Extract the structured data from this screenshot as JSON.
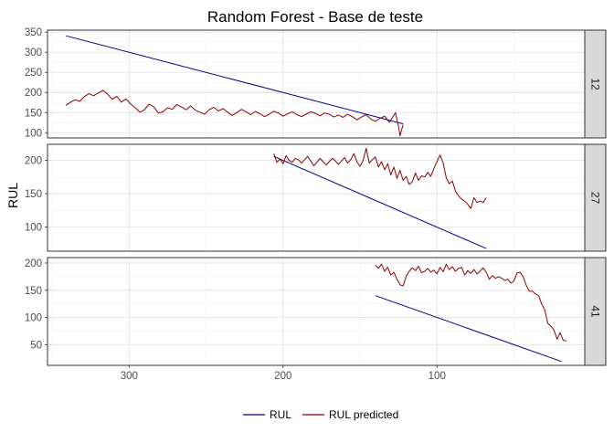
{
  "chart_data": {
    "type": "line",
    "title": "Random Forest - Base de teste",
    "xlabel": "",
    "ylabel": "RUL",
    "x_reversed": true,
    "xlim": [
      4,
      353
    ],
    "x_ticks": [
      300,
      200,
      100
    ],
    "grid": true,
    "legend_position": "bottom",
    "colors": {
      "RUL": "#00008b",
      "RUL predicted": "#8b0000"
    },
    "panels": [
      {
        "strip": "12",
        "ylim": [
          87,
          355
        ],
        "y_ticks": [
          100,
          150,
          200,
          250,
          300,
          350
        ],
        "series": [
          {
            "name": "RUL",
            "points": [
              [
                341,
                341
              ],
              [
                122,
                122
              ]
            ]
          },
          {
            "name": "RUL predicted",
            "points": [
              [
                341,
                168
              ],
              [
                338,
                176
              ],
              [
                335,
                182
              ],
              [
                332,
                178
              ],
              [
                329,
                190
              ],
              [
                326,
                197
              ],
              [
                323,
                192
              ],
              [
                320,
                199
              ],
              [
                317,
                205
              ],
              [
                314,
                196
              ],
              [
                311,
                183
              ],
              [
                308,
                190
              ],
              [
                305,
                176
              ],
              [
                302,
                184
              ],
              [
                299,
                171
              ],
              [
                296,
                162
              ],
              [
                293,
                151
              ],
              [
                290,
                157
              ],
              [
                287,
                171
              ],
              [
                284,
                164
              ],
              [
                281,
                149
              ],
              [
                278,
                152
              ],
              [
                275,
                162
              ],
              [
                272,
                158
              ],
              [
                269,
                170
              ],
              [
                266,
                164
              ],
              [
                263,
                157
              ],
              [
                260,
                167
              ],
              [
                257,
                156
              ],
              [
                254,
                151
              ],
              [
                251,
                146
              ],
              [
                248,
                157
              ],
              [
                245,
                163
              ],
              [
                242,
                154
              ],
              [
                239,
                160
              ],
              [
                236,
                151
              ],
              [
                233,
                143
              ],
              [
                230,
                150
              ],
              [
                227,
                158
              ],
              [
                224,
                152
              ],
              [
                221,
                145
              ],
              [
                218,
                153
              ],
              [
                215,
                147
              ],
              [
                212,
                140
              ],
              [
                209,
                146
              ],
              [
                206,
                153
              ],
              [
                203,
                149
              ],
              [
                200,
                141
              ],
              [
                197,
                147
              ],
              [
                194,
                152
              ],
              [
                191,
                145
              ],
              [
                188,
                140
              ],
              [
                185,
                146
              ],
              [
                182,
                152
              ],
              [
                179,
                148
              ],
              [
                176,
                142
              ],
              [
                173,
                149
              ],
              [
                170,
                146
              ],
              [
                167,
                139
              ],
              [
                164,
                144
              ],
              [
                161,
                138
              ],
              [
                158,
                146
              ],
              [
                155,
                140
              ],
              [
                152,
                132
              ],
              [
                149,
                139
              ],
              [
                146,
                145
              ],
              [
                143,
                134
              ],
              [
                140,
                128
              ],
              [
                137,
                136
              ],
              [
                134,
                141
              ],
              [
                131,
                126
              ],
              [
                128,
                143
              ],
              [
                127,
                150
              ],
              [
                126,
                132
              ],
              [
                125,
                116
              ],
              [
                124,
                92
              ],
              [
                123,
                107
              ],
              [
                122,
                120
              ]
            ]
          }
        ]
      },
      {
        "strip": "27",
        "ylim": [
          64,
          224
        ],
        "y_ticks": [
          100,
          150,
          200
        ],
        "series": [
          {
            "name": "RUL",
            "points": [
              [
                206,
                206
              ],
              [
                68,
                68
              ]
            ]
          },
          {
            "name": "RUL predicted",
            "points": [
              [
                206,
                210
              ],
              [
                204,
                197
              ],
              [
                202,
                202
              ],
              [
                200,
                195
              ],
              [
                198,
                207
              ],
              [
                196,
                200
              ],
              [
                194,
                197
              ],
              [
                192,
                203
              ],
              [
                190,
                201
              ],
              [
                188,
                196
              ],
              [
                186,
                201
              ],
              [
                184,
                206
              ],
              [
                182,
                199
              ],
              [
                180,
                192
              ],
              [
                178,
                197
              ],
              [
                176,
                203
              ],
              [
                174,
                198
              ],
              [
                172,
                193
              ],
              [
                170,
                198
              ],
              [
                168,
                203
              ],
              [
                166,
                199
              ],
              [
                164,
                194
              ],
              [
                162,
                199
              ],
              [
                160,
                204
              ],
              [
                158,
                196
              ],
              [
                156,
                201
              ],
              [
                154,
                210
              ],
              [
                152,
                198
              ],
              [
                150,
                191
              ],
              [
                148,
                200
              ],
              [
                146,
                218
              ],
              [
                144,
                196
              ],
              [
                142,
                201
              ],
              [
                140,
                205
              ],
              [
                138,
                190
              ],
              [
                136,
                198
              ],
              [
                134,
                186
              ],
              [
                132,
                195
              ],
              [
                130,
                178
              ],
              [
                128,
                190
              ],
              [
                126,
                173
              ],
              [
                124,
                185
              ],
              [
                122,
                170
              ],
              [
                120,
                176
              ],
              [
                118,
                164
              ],
              [
                116,
                168
              ],
              [
                114,
                181
              ],
              [
                112,
                170
              ],
              [
                110,
                177
              ],
              [
                108,
                175
              ],
              [
                106,
                182
              ],
              [
                104,
                176
              ],
              [
                102,
                188
              ],
              [
                100,
                198
              ],
              [
                98,
                208
              ],
              [
                96,
                196
              ],
              [
                94,
                174
              ],
              [
                92,
                165
              ],
              [
                90,
                169
              ],
              [
                88,
                154
              ],
              [
                86,
                147
              ],
              [
                84,
                142
              ],
              [
                82,
                139
              ],
              [
                80,
                134
              ],
              [
                78,
                128
              ],
              [
                76,
                144
              ],
              [
                74,
                137
              ],
              [
                72,
                139
              ],
              [
                70,
                137
              ],
              [
                68,
                144
              ]
            ]
          }
        ]
      },
      {
        "strip": "41",
        "ylim": [
          12,
          210
        ],
        "y_ticks": [
          50,
          100,
          150,
          200
        ],
        "series": [
          {
            "name": "RUL",
            "points": [
              [
                140,
                140
              ],
              [
                19,
                19
              ]
            ]
          },
          {
            "name": "RUL predicted",
            "points": [
              [
                140,
                196
              ],
              [
                138,
                190
              ],
              [
                136,
                198
              ],
              [
                134,
                185
              ],
              [
                132,
                192
              ],
              [
                130,
                178
              ],
              [
                128,
                183
              ],
              [
                126,
                170
              ],
              [
                124,
                160
              ],
              [
                122,
                158
              ],
              [
                120,
                176
              ],
              [
                118,
                185
              ],
              [
                116,
                191
              ],
              [
                114,
                186
              ],
              [
                112,
                194
              ],
              [
                110,
                182
              ],
              [
                108,
                185
              ],
              [
                106,
                190
              ],
              [
                104,
                183
              ],
              [
                102,
                187
              ],
              [
                100,
                180
              ],
              [
                98,
                192
              ],
              [
                96,
                184
              ],
              [
                94,
                198
              ],
              [
                92,
                188
              ],
              [
                90,
                193
              ],
              [
                88,
                185
              ],
              [
                86,
                190
              ],
              [
                84,
                192
              ],
              [
                82,
                178
              ],
              [
                80,
                186
              ],
              [
                78,
                181
              ],
              [
                76,
                188
              ],
              [
                74,
                180
              ],
              [
                72,
                185
              ],
              [
                70,
                191
              ],
              [
                68,
                183
              ],
              [
                66,
                170
              ],
              [
                64,
                177
              ],
              [
                62,
                172
              ],
              [
                60,
                175
              ],
              [
                58,
                172
              ],
              [
                56,
                168
              ],
              [
                54,
                170
              ],
              [
                52,
                163
              ],
              [
                50,
                167
              ],
              [
                48,
                182
              ],
              [
                46,
                183
              ],
              [
                44,
                175
              ],
              [
                42,
                159
              ],
              [
                40,
                148
              ],
              [
                38,
                148
              ],
              [
                36,
                143
              ],
              [
                34,
                140
              ],
              [
                32,
                125
              ],
              [
                30,
                114
              ],
              [
                28,
                89
              ],
              [
                26,
                84
              ],
              [
                24,
                77
              ],
              [
                22,
                60
              ],
              [
                20,
                72
              ],
              [
                18,
                58
              ],
              [
                16,
                57
              ]
            ]
          }
        ]
      }
    ]
  }
}
